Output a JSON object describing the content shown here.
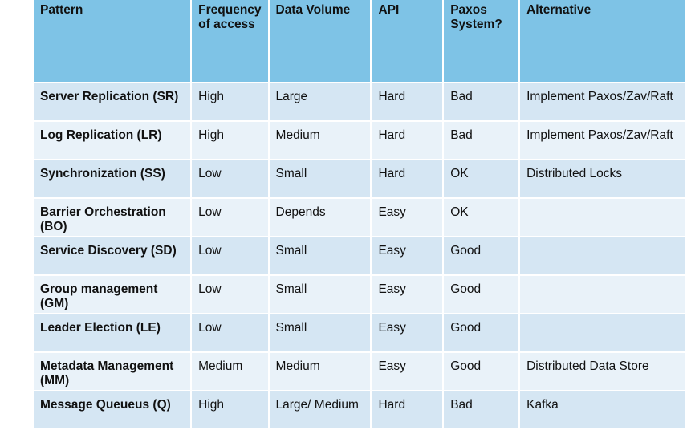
{
  "columns": [
    "Pattern",
    "Frequency of access",
    "Data Volume",
    "API",
    "Paxos System?",
    "Alternative"
  ],
  "rows": [
    [
      "Server Replication (SR)",
      "High",
      "Large",
      "Hard",
      "Bad",
      "Implement Paxos/Zav/Raft"
    ],
    [
      "Log Replication (LR)",
      "High",
      "Medium",
      "Hard",
      "Bad",
      "Implement Paxos/Zav/Raft"
    ],
    [
      "Synchronization (SS)",
      "Low",
      "Small",
      "Hard",
      "OK",
      "Distributed Locks"
    ],
    [
      "Barrier Orchestration (BO)",
      "Low",
      "Depends",
      "Easy",
      "OK",
      ""
    ],
    [
      "Service Discovery (SD)",
      "Low",
      "Small",
      "Easy",
      "Good",
      ""
    ],
    [
      "Group management (GM)",
      "Low",
      "Small",
      "Easy",
      "Good",
      ""
    ],
    [
      "Leader Election (LE)",
      "Low",
      "Small",
      "Easy",
      "Good",
      ""
    ],
    [
      "Metadata Management (MM)",
      "Medium",
      "Medium",
      "Easy",
      "Good",
      "Distributed Data Store"
    ],
    [
      "Message Queueus (Q)",
      "High",
      "Large/ Medium",
      "Hard",
      "Bad",
      "Kafka"
    ]
  ]
}
